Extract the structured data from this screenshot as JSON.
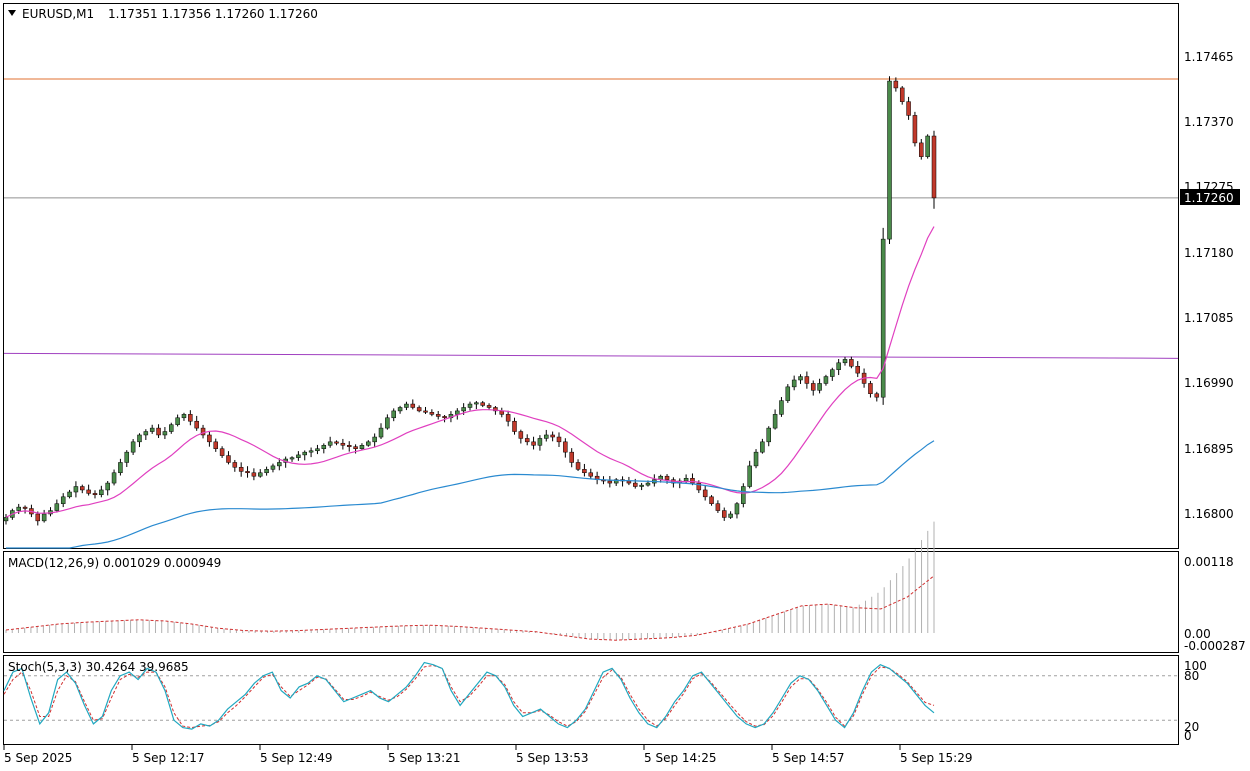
{
  "header": {
    "symbol": "EURUSD,M1",
    "ohlc": "1.17351 1.17356 1.17260 1.17260"
  },
  "price_axis": {
    "labels": [
      "1.17465",
      "1.17370",
      "1.17275",
      "1.17180",
      "1.17085",
      "1.16990",
      "1.16895",
      "1.16800"
    ],
    "current": "1.17260"
  },
  "macd": {
    "label": "MACD(12,26,9) 0.001029 0.000949",
    "axis_labels": [
      "0.00118",
      "0.00",
      "-0.000287"
    ]
  },
  "stoch": {
    "label": "Stoch(5,3,3) 30.4264 39.9685",
    "axis_labels": [
      "100",
      "80",
      "20",
      "0"
    ]
  },
  "time_axis": {
    "labels": [
      "5 Sep 2025",
      "5 Sep 12:17",
      "5 Sep 12:49",
      "5 Sep 13:21",
      "5 Sep 13:53",
      "5 Sep 14:25",
      "5 Sep 14:57",
      "5 Sep 15:29"
    ]
  },
  "colors": {
    "bull": "#4a8a4a",
    "bear": "#c0392b",
    "ma_fast": "#e040c0",
    "ma_slow": "#2a8ad0",
    "resistance": "#e07030",
    "pivot": "#a040c0",
    "stoch_main": "#20a8c0",
    "stoch_signal": "#d03030",
    "macd_signal": "#d03030",
    "macd_hist": "#b0b0b0"
  },
  "chart_data": {
    "type": "candlestick",
    "title": "EURUSD,M1",
    "last": {
      "open": 1.17351,
      "high": 1.17356,
      "low": 1.1726,
      "close": 1.1726
    },
    "ylim": [
      1.1676,
      1.1754
    ],
    "levels": {
      "resistance": 1.17433,
      "current": 1.1726,
      "pivot": 1.17028
    },
    "series_closes": [
      1.16795,
      1.16805,
      1.1681,
      1.16808,
      1.168,
      1.1679,
      1.168,
      1.16805,
      1.16815,
      1.16825,
      1.16832,
      1.1684,
      1.16835,
      1.1683,
      1.16828,
      1.16835,
      1.16845,
      1.1686,
      1.16875,
      1.1689,
      1.16905,
      1.16915,
      1.1692,
      1.16925,
      1.16915,
      1.1692,
      1.1693,
      1.1694,
      1.16945,
      1.16935,
      1.16925,
      1.16915,
      1.16905,
      1.16895,
      1.16885,
      1.16875,
      1.16868,
      1.16862,
      1.1686,
      1.16855,
      1.1686,
      1.16865,
      1.1687,
      1.16875,
      1.1688,
      1.16882,
      1.16886,
      1.1689,
      1.16892,
      1.16895,
      1.169,
      1.16905,
      1.16903,
      1.169,
      1.16898,
      1.16895,
      1.169,
      1.16905,
      1.16912,
      1.16925,
      1.1694,
      1.1695,
      1.16955,
      1.1696,
      1.16955,
      1.1695,
      1.16948,
      1.16945,
      1.16942,
      1.1694,
      1.16945,
      1.1695,
      1.16955,
      1.1696,
      1.16962,
      1.16958,
      1.16955,
      1.1695,
      1.16945,
      1.16935,
      1.1692,
      1.1691,
      1.16905,
      1.169,
      1.1691,
      1.16915,
      1.16912,
      1.16905,
      1.1689,
      1.16875,
      1.16865,
      1.1686,
      1.16855,
      1.1685,
      1.16848,
      1.16845,
      1.1685,
      1.16848,
      1.16845,
      1.1684,
      1.16842,
      1.16845,
      1.1685,
      1.16855,
      1.1685,
      1.16845,
      1.16848,
      1.16852,
      1.16845,
      1.16835,
      1.16825,
      1.16815,
      1.16805,
      1.16795,
      1.168,
      1.16815,
      1.1684,
      1.1687,
      1.1689,
      1.16905,
      1.16925,
      1.16945,
      1.16965,
      1.16985,
      1.16995,
      1.17,
      1.1699,
      1.1698,
      1.1699,
      1.17,
      1.1701,
      1.1702,
      1.17025,
      1.17015,
      1.17005,
      1.1699,
      1.16975,
      1.1697,
      1.172,
      1.1743,
      1.1742,
      1.174,
      1.1738,
      1.1734,
      1.1732,
      1.1735,
      1.1726
    ],
    "macd": {
      "range": [
        -0.000287,
        0.00118
      ],
      "signal": [
        5e-05,
        0.0001,
        0.00015,
        0.00018,
        0.0002,
        0.00022,
        0.0002,
        0.00015,
        8e-05,
        4e-05,
        3e-05,
        4e-05,
        6e-05,
        8e-05,
        0.0001,
        0.00012,
        0.00013,
        0.00011,
        8e-05,
        5e-05,
        2e-05,
        -4e-05,
        -0.0001,
        -0.00012,
        -0.0001,
        -8e-05,
        -4e-05,
        5e-05,
        0.00015,
        0.0003,
        0.00045,
        0.00048,
        0.00042,
        0.0004,
        0.0006,
        0.00095
      ]
    },
    "stoch": {
      "range": [
        0,
        100
      ],
      "levels": [
        20,
        80
      ],
      "main": [
        60,
        85,
        90,
        50,
        15,
        30,
        75,
        85,
        70,
        40,
        15,
        25,
        60,
        80,
        85,
        75,
        90,
        85,
        60,
        20,
        10,
        8,
        15,
        12,
        20,
        35,
        45,
        55,
        70,
        80,
        85,
        60,
        50,
        65,
        70,
        80,
        75,
        60,
        45,
        50,
        55,
        60,
        50,
        45,
        55,
        65,
        80,
        98,
        95,
        90,
        60,
        40,
        55,
        70,
        85,
        80,
        65,
        40,
        25,
        30,
        35,
        25,
        15,
        10,
        20,
        35,
        60,
        85,
        90,
        75,
        50,
        30,
        15,
        10,
        25,
        45,
        60,
        80,
        85,
        70,
        55,
        40,
        25,
        15,
        10,
        15,
        30,
        50,
        70,
        80,
        75,
        60,
        40,
        20,
        10,
        30,
        60,
        85,
        95,
        90,
        80,
        70,
        55,
        40,
        30
      ],
      "signal": [
        55,
        75,
        85,
        60,
        25,
        25,
        60,
        80,
        72,
        45,
        20,
        22,
        50,
        75,
        82,
        78,
        85,
        85,
        65,
        30,
        12,
        10,
        12,
        13,
        18,
        30,
        40,
        52,
        65,
        78,
        82,
        65,
        52,
        60,
        68,
        78,
        76,
        62,
        48,
        48,
        52,
        58,
        52,
        47,
        52,
        62,
        76,
        92,
        94,
        90,
        65,
        45,
        52,
        65,
        80,
        80,
        68,
        45,
        30,
        30,
        33,
        27,
        18,
        12,
        18,
        32,
        55,
        78,
        88,
        78,
        55,
        35,
        20,
        12,
        22,
        40,
        56,
        76,
        83,
        72,
        58,
        44,
        30,
        18,
        12,
        14,
        26,
        45,
        65,
        76,
        76,
        62,
        44,
        24,
        12,
        26,
        55,
        80,
        92,
        90,
        82,
        72,
        58,
        44,
        40
      ]
    }
  }
}
